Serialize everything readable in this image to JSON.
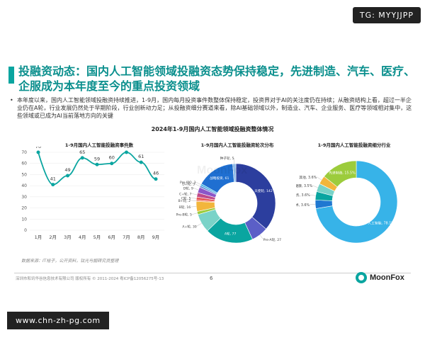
{
  "watermark": "TG: MYYJJPP",
  "title": "投融资动态：国内人工智能领域投融资态势保持稳定，先进制造、汽车、医疗、企服成为本年度至今的重点投资领域",
  "bullet": "本年度以来，国内人工智能领域投融资持续推进，1-9月，国内每月投资事件数整体保持稳定，投资界对于AI的关注度仍在持续；从融资结构上看，超过一半企业仍在A轮，行业发展仍然处于早期阶段，行业创新动力足；从投融资细分赛道来看，除AI基础领域以外，制造业、汽车、企业服务、医疗等领域相对集中，这些领域或已成为AI当前落地方向的关键",
  "main_title": "2024年1-9月国内人工智能领域投融资整体情况",
  "charts": [
    {
      "chart_data": {
        "type": "line",
        "title": "1-9月国内人工智能投融资事件数",
        "categories": [
          "1月",
          "2月",
          "3月",
          "4月",
          "5月",
          "6月",
          "7月",
          "8月",
          "9月"
        ],
        "values": [
          70,
          41,
          49,
          65,
          59,
          60,
          70,
          61,
          46
        ],
        "ylim": [
          0,
          70
        ],
        "yticks": [
          0,
          10,
          20,
          30,
          40,
          50,
          60,
          70
        ],
        "grid": true,
        "color": "#0aa5a0"
      }
    },
    {
      "chart_data": {
        "type": "pie",
        "title": "1-9月国内人工智能投融资轮次分布",
        "donut": true,
        "slices": [
          {
            "label": "天使轮, 142",
            "value": 142,
            "color": "#2c3e9e"
          },
          {
            "label": "Pre-A轮, 27",
            "value": 27,
            "color": "#5b5fc7"
          },
          {
            "label": "A轮, 77",
            "value": 77,
            "color": "#0aa5a0"
          },
          {
            "label": "A+轮, 30",
            "value": 30,
            "color": "#7ad3c8"
          },
          {
            "label": "Pre-B轮, 5",
            "value": 5,
            "color": "#9ccc3c"
          },
          {
            "label": "B轮, 16",
            "value": 16,
            "color": "#f2b63c"
          },
          {
            "label": "B+轮, 2",
            "value": 2,
            "color": "#f07c3c"
          },
          {
            "label": "C轮, 5",
            "value": 5,
            "color": "#e85a5a"
          },
          {
            "label": "C+轮, 7",
            "value": 7,
            "color": "#c04a8a"
          },
          {
            "label": "D轮, 9",
            "value": 9,
            "color": "#8a56c8"
          },
          {
            "label": "D+轮, 3",
            "value": 3,
            "color": "#5e88d8"
          },
          {
            "label": "Pre-IPO, 3",
            "value": 3,
            "color": "#3cb4e6"
          },
          {
            "label": "战略投资, 61",
            "value": 61,
            "color": "#1f6fd1"
          },
          {
            "label": "种子轮, 5",
            "value": 5,
            "color": "#8fbce8"
          }
        ]
      }
    },
    {
      "chart_data": {
        "type": "pie",
        "title": "1-9月国内人工智能投融资细分行业",
        "donut": true,
        "slices": [
          {
            "label": "人工智能, 78.1%",
            "value": 78.1,
            "color": "#37b3e8"
          },
          {
            "label": "汽车技术, 3.6%",
            "value": 3.6,
            "color": "#1f78d1"
          },
          {
            "label": "企业服务, 3.6%",
            "value": 3.6,
            "color": "#0aa5a0"
          },
          {
            "label": "医疗健康, 3.5%",
            "value": 3.5,
            "color": "#7ad3c8"
          },
          {
            "label": "其他, 3.6%",
            "value": 3.6,
            "color": "#f2b63c"
          },
          {
            "label": "先进制造, 15.5%",
            "value": 15.5,
            "color": "#9ccc3c"
          }
        ]
      }
    }
  ],
  "source": "数据来源：IT桔子，公开资料，钛光与掘砖究员整理",
  "footer": "深圳市和讯华谷信息技术有限公司 版权所有 © 2011-2024 粤ICP备12056275号-13",
  "page_number": "6",
  "logo": "MoonFox",
  "url_watermark": "www.chn-zh-pg.com"
}
